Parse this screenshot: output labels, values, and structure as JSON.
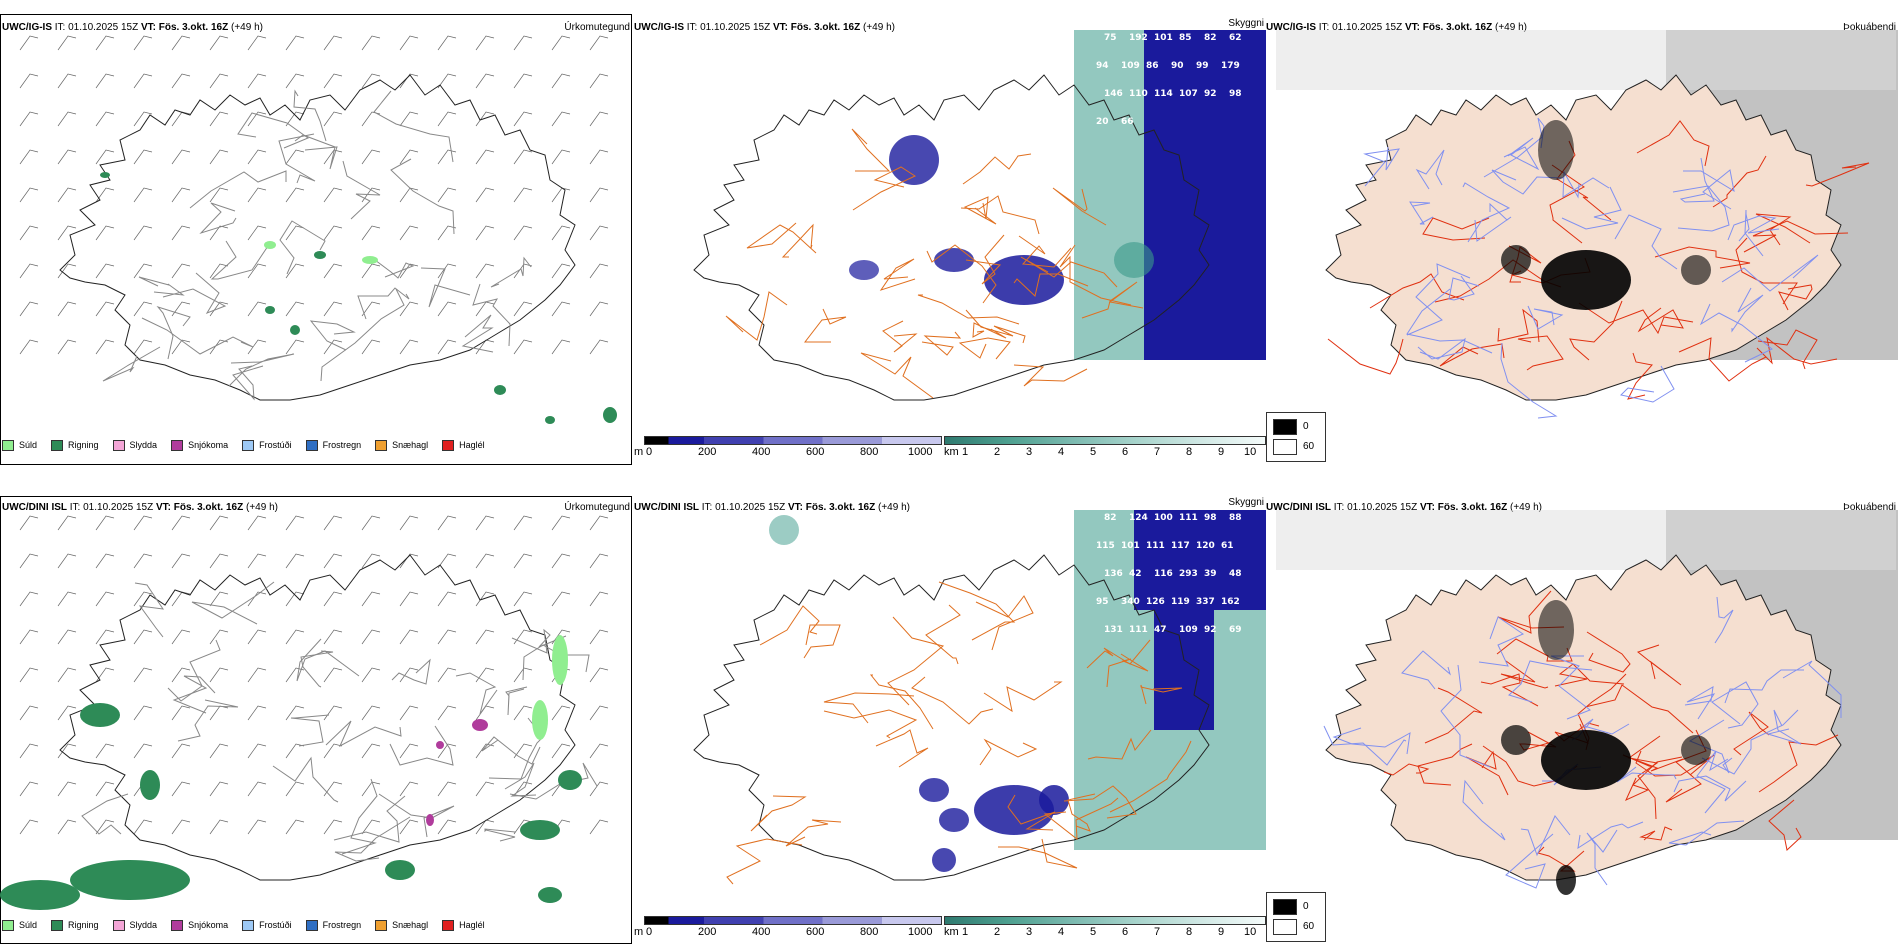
{
  "rows": [
    {
      "panels": [
        {
          "model": "UWC/IG-IS",
          "it_label": "IT:",
          "it": "01.10.2025 15Z",
          "vt_label": "VT:",
          "vt": "Fös. 3.okt. 16Z",
          "lead": "(+49 h)",
          "product": "Úrkomutegund"
        },
        {
          "model": "UWC/IG-IS",
          "it_label": "IT:",
          "it": "01.10.2025 15Z",
          "vt_label": "VT:",
          "vt": "Fös. 3.okt. 16Z",
          "lead": "(+49 h)",
          "product": "Skyggni"
        },
        {
          "model": "UWC/IG-IS",
          "it_label": "IT:",
          "it": "01.10.2025 15Z",
          "vt_label": "VT:",
          "vt": "Fös. 3.okt. 16Z",
          "lead": "(+49 h)",
          "product": "Þokuábendi"
        }
      ],
      "vis_numbers": [
        "75",
        "192",
        "101",
        "85",
        "82",
        "62",
        "94",
        "109",
        "86",
        "90",
        "99",
        "179",
        "146",
        "110",
        "114",
        "107",
        "92",
        "98",
        "20",
        "66"
      ]
    },
    {
      "panels": [
        {
          "model": "UWC/DINI ISL",
          "it_label": "IT:",
          "it": "01.10.2025 15Z",
          "vt_label": "VT:",
          "vt": "Fös. 3.okt. 16Z",
          "lead": "(+49 h)",
          "product": "Úrkomutegund"
        },
        {
          "model": "UWC/DINI ISL",
          "it_label": "IT:",
          "it": "01.10.2025 15Z",
          "vt_label": "VT:",
          "vt": "Fös. 3.okt. 16Z",
          "lead": "(+49 h)",
          "product": "Skyggni"
        },
        {
          "model": "UWC/DINI ISL",
          "it_label": "IT:",
          "it": "01.10.2025 15Z",
          "vt_label": "VT:",
          "vt": "Fös. 3.okt. 16Z",
          "lead": "(+49 h)",
          "product": "Þokuábendi"
        }
      ],
      "vis_numbers": [
        "82",
        "124",
        "100",
        "111",
        "98",
        "88",
        "115",
        "101",
        "111",
        "117",
        "120",
        "61",
        "136",
        "42",
        "116",
        "293",
        "39",
        "48",
        "95",
        "340",
        "126",
        "119",
        "337",
        "162",
        "131",
        "111",
        "47",
        "109",
        "92",
        "69"
      ]
    }
  ],
  "precip_legend": [
    {
      "label": "Súld",
      "color": "#90ee90"
    },
    {
      "label": "Rigning",
      "color": "#2e8b57"
    },
    {
      "label": "Slydda",
      "color": "#f4a6d7"
    },
    {
      "label": "Snjókoma",
      "color": "#b03c9c"
    },
    {
      "label": "Frostúði",
      "color": "#9ec9f5"
    },
    {
      "label": "Frostregn",
      "color": "#2f6fc4"
    },
    {
      "label": "Snæhagl",
      "color": "#f0a030"
    },
    {
      "label": "Haglél",
      "color": "#e02020"
    }
  ],
  "cbar_m": {
    "unit": "m",
    "ticks": [
      "0",
      "200",
      "400",
      "600",
      "800",
      "1000"
    ]
  },
  "cbar_km": {
    "unit": "km",
    "ticks": [
      "1",
      "2",
      "3",
      "4",
      "5",
      "6",
      "7",
      "8",
      "9",
      "10"
    ]
  },
  "fog_legend": {
    "top": "0",
    "bottom": "60"
  },
  "colors": {
    "road": "#e07020",
    "coast": "#000000",
    "land_fog": "#f5dfd0",
    "rain": "#2e8b57",
    "vis_dark": "#1a1a9c",
    "vis_teal": "#3a9a8a"
  }
}
